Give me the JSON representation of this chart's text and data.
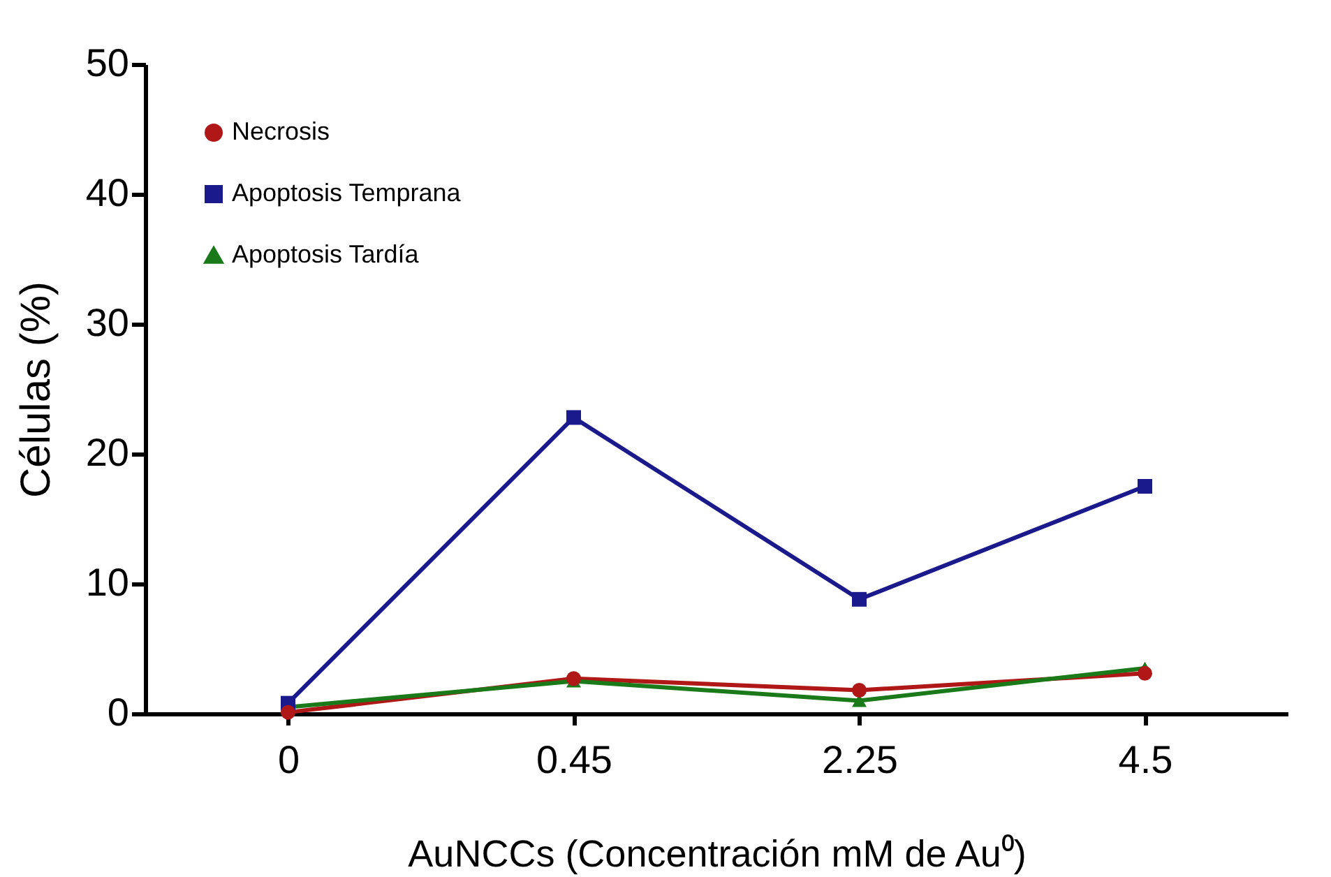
{
  "chart_data": {
    "type": "line",
    "xlabel": "AuNCCs (Concentración mM de Au⁰)",
    "ylabel": "Células (%)",
    "categories": [
      "0",
      "0.45",
      "2.25",
      "4.5"
    ],
    "series": [
      {
        "name": "Necrosis",
        "color": "#b01818",
        "marker": "circle",
        "values": [
          0.1,
          2.7,
          1.8,
          3.1
        ]
      },
      {
        "name": "Apoptosis Temprana",
        "color": "#1a1a8c",
        "marker": "square",
        "values": [
          0.8,
          22.8,
          8.8,
          17.5
        ]
      },
      {
        "name": "Apoptosis Tardía",
        "color": "#1a7a1a",
        "marker": "triangle",
        "values": [
          0.5,
          2.5,
          1.0,
          3.5
        ]
      }
    ],
    "ylim": [
      0,
      50
    ],
    "yticks": [
      0,
      10,
      20,
      30,
      40,
      50
    ],
    "grid": false,
    "legend": "top left",
    "line_style": "solid"
  }
}
